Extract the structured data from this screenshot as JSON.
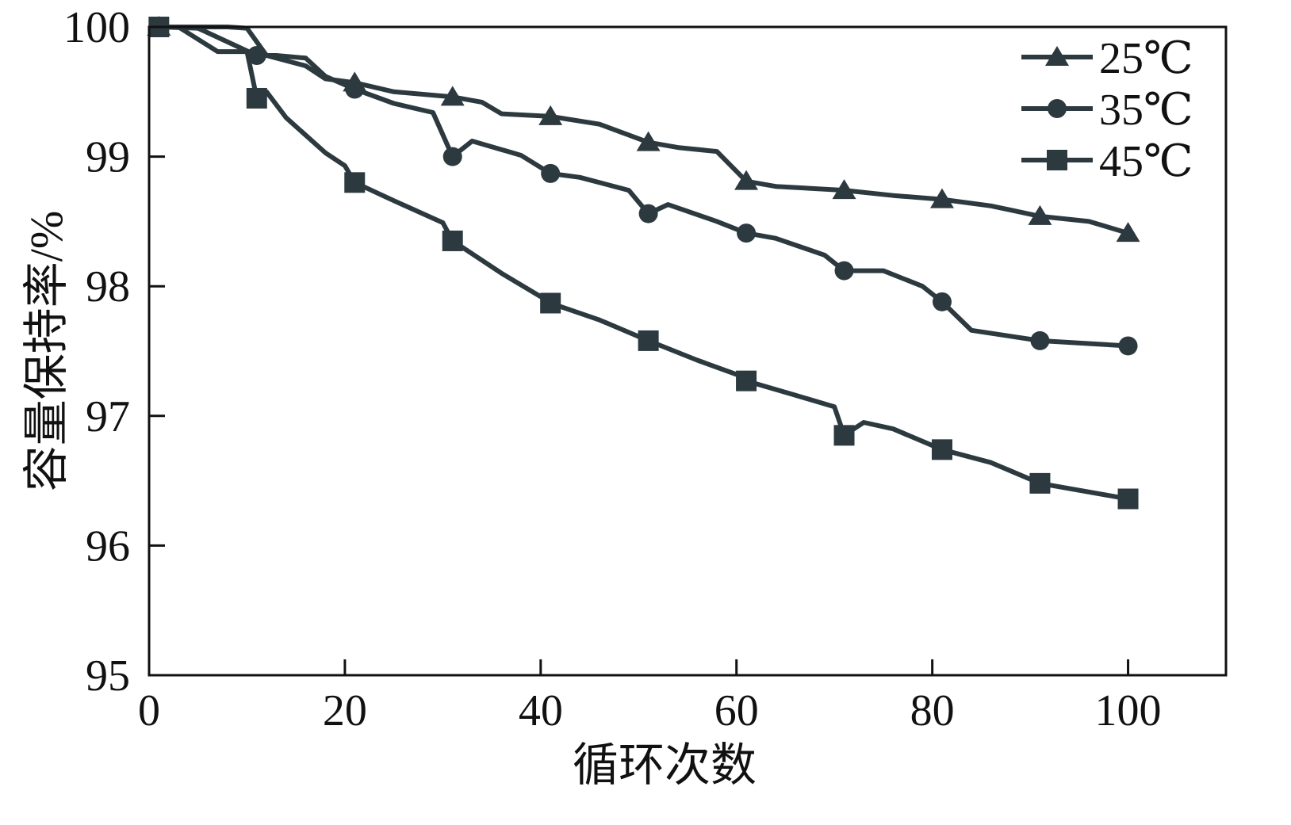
{
  "chart_data": {
    "type": "line",
    "title": "",
    "xlabel": "循环次数",
    "ylabel": "容量保持率/%",
    "xlim": [
      0,
      110
    ],
    "ylim": [
      95,
      100
    ],
    "x_ticks": [
      0,
      20,
      40,
      60,
      80,
      100
    ],
    "y_ticks": [
      95,
      96,
      97,
      98,
      99,
      100
    ],
    "x_tick_labels": [
      "0",
      "20",
      "40",
      "60",
      "80",
      "100"
    ],
    "y_tick_labels": [
      "95",
      "96",
      "97",
      "98",
      "99",
      "100"
    ],
    "grid": false,
    "legend_position": "top-right",
    "line_color": "#2c3a40",
    "series": [
      {
        "name": "25℃",
        "marker": "triangle",
        "x": [
          1,
          4,
          8,
          10,
          12,
          16,
          18,
          21,
          25,
          31,
          34,
          36,
          41,
          46,
          51,
          54,
          58,
          61,
          64,
          71,
          76,
          81,
          86,
          91,
          96,
          100
        ],
        "y": [
          100,
          100,
          100,
          99.99,
          99.78,
          99.7,
          99.6,
          99.57,
          99.5,
          99.46,
          99.42,
          99.33,
          99.31,
          99.25,
          99.11,
          99.07,
          99.04,
          98.81,
          98.77,
          98.74,
          98.7,
          98.67,
          98.62,
          98.54,
          98.5,
          98.41
        ]
      },
      {
        "name": "35℃",
        "marker": "circle",
        "x": [
          1,
          5,
          9,
          11,
          13,
          16,
          18,
          21,
          25,
          29,
          31,
          33,
          38,
          41,
          44,
          49,
          51,
          53,
          58,
          61,
          64,
          69,
          71,
          75,
          79,
          81,
          84,
          91,
          100
        ],
        "y": [
          100,
          99.99,
          99.85,
          99.78,
          99.78,
          99.76,
          99.62,
          99.52,
          99.41,
          99.34,
          99.0,
          99.12,
          99.01,
          98.87,
          98.84,
          98.74,
          98.56,
          98.63,
          98.5,
          98.41,
          98.37,
          98.24,
          98.12,
          98.12,
          98.0,
          97.88,
          97.66,
          97.58,
          97.54
        ]
      },
      {
        "name": "45℃",
        "marker": "square",
        "x": [
          1,
          3,
          7,
          10,
          11,
          12,
          14,
          18,
          20,
          21,
          25,
          30,
          31,
          36,
          40,
          41,
          46,
          51,
          56,
          60,
          61,
          66,
          70,
          71,
          73,
          76,
          81,
          86,
          91,
          100
        ],
        "y": [
          100,
          100,
          99.81,
          99.81,
          99.45,
          99.5,
          99.3,
          99.03,
          98.93,
          98.8,
          98.66,
          98.49,
          98.35,
          98.1,
          97.92,
          97.87,
          97.74,
          97.58,
          97.43,
          97.32,
          97.27,
          97.16,
          97.07,
          96.85,
          96.95,
          96.9,
          96.74,
          96.64,
          96.48,
          96.36
        ]
      }
    ]
  }
}
